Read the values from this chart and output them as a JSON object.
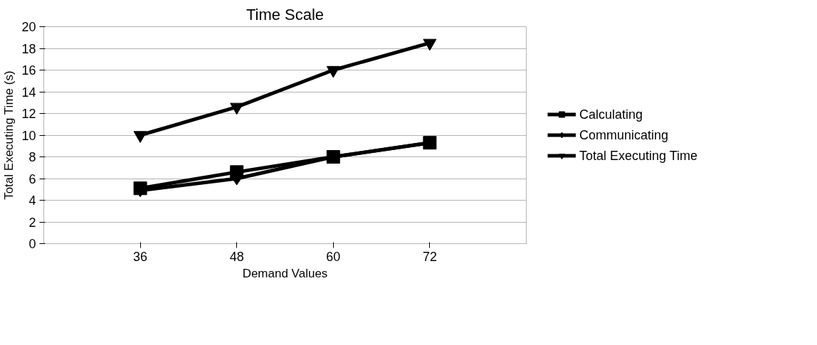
{
  "chart_data": {
    "type": "line",
    "title": "Time Scale",
    "xlabel": "Demand Values",
    "ylabel": "Total Executing Time (s)",
    "x": [
      36,
      48,
      60,
      72
    ],
    "xlim": [
      24,
      84
    ],
    "xticks": [
      36,
      48,
      60,
      72
    ],
    "ylim": [
      0,
      20
    ],
    "yticks": [
      0,
      2,
      4,
      6,
      8,
      10,
      12,
      14,
      16,
      18,
      20
    ],
    "grid": "y",
    "legend": "right",
    "line_style": "solid",
    "series": [
      {
        "name": "Calculating",
        "color": "#000000",
        "marker": "square",
        "values": [
          5.1,
          6.6,
          8.0,
          9.3
        ]
      },
      {
        "name": "Communicating",
        "color": "#000000",
        "marker": "diamond",
        "values": [
          4.9,
          6.0,
          8.0,
          9.3
        ]
      },
      {
        "name": "Total Executing Time",
        "color": "#000000",
        "marker": "triangle",
        "values": [
          10.0,
          12.6,
          16.0,
          18.5
        ]
      }
    ]
  }
}
